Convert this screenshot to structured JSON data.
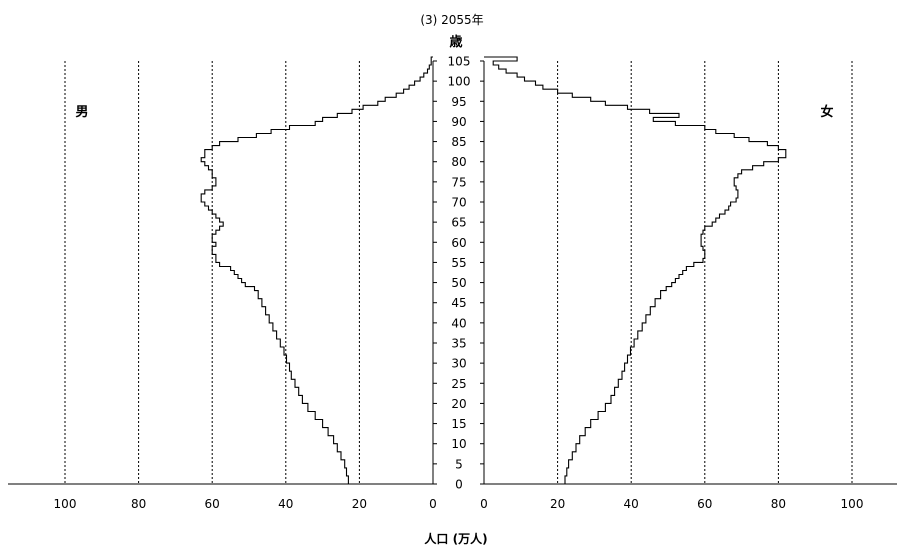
{
  "chart_data": {
    "type": "population_pyramid",
    "title": "(3) 2055年",
    "y_unit_label": "歳",
    "xlabel": "人口 (万人)",
    "left_label": "男",
    "right_label": "女",
    "xticks": [
      100,
      80,
      60,
      40,
      20,
      0
    ],
    "xticks_right": [
      0,
      20,
      40,
      60,
      80,
      100
    ],
    "yticks": [
      105,
      100,
      95,
      90,
      85,
      80,
      75,
      70,
      65,
      60,
      55,
      50,
      45,
      40,
      35,
      30,
      25,
      20,
      15,
      10,
      5,
      0
    ],
    "xlim": [
      0,
      110
    ],
    "ylim": [
      0,
      105
    ],
    "grid": "vertical dashed",
    "series": [
      {
        "name": "男",
        "ages": [
          0,
          2,
          4,
          6,
          8,
          10,
          12,
          14,
          16,
          18,
          20,
          22,
          24,
          26,
          28,
          30,
          32,
          34,
          36,
          38,
          40,
          42,
          44,
          46,
          48,
          49,
          50,
          51,
          52,
          53,
          54,
          55,
          56,
          57,
          58,
          59,
          60,
          61,
          62,
          63,
          64,
          65,
          66,
          67,
          68,
          69,
          70,
          71,
          72,
          73,
          74,
          75,
          76,
          77,
          78,
          79,
          80,
          81,
          82,
          83,
          84,
          85,
          86,
          87,
          88,
          89,
          90,
          91,
          92,
          93,
          94,
          95,
          96,
          97,
          98,
          99,
          100,
          101,
          102,
          103,
          104,
          105
        ],
        "values": [
          23,
          23.5,
          24,
          25,
          26,
          27,
          28.5,
          30,
          32,
          34,
          35.5,
          36.5,
          37.5,
          38.5,
          39,
          39.8,
          40.5,
          41.5,
          42.5,
          43.5,
          44.5,
          45.5,
          46.5,
          47.5,
          48.5,
          51,
          52,
          53,
          54,
          55,
          58,
          59,
          59,
          60,
          60,
          59,
          60,
          60,
          59,
          58,
          57,
          58,
          59,
          60,
          61,
          62,
          63,
          63,
          62,
          60,
          59,
          59,
          60,
          60,
          61,
          62,
          63,
          62,
          62,
          60,
          58,
          53,
          48,
          44,
          39,
          32,
          30,
          26,
          22,
          19,
          15,
          13,
          10,
          8,
          6.5,
          5,
          3.5,
          2.5,
          1.5,
          1,
          0.5,
          0.5
        ]
      },
      {
        "name": "女",
        "ages": [
          0,
          2,
          4,
          6,
          8,
          10,
          12,
          14,
          16,
          18,
          20,
          22,
          24,
          26,
          28,
          30,
          32,
          34,
          36,
          38,
          40,
          42,
          44,
          46,
          48,
          49,
          50,
          51,
          52,
          53,
          54,
          55,
          56,
          57,
          58,
          59,
          60,
          61,
          62,
          63,
          64,
          65,
          66,
          67,
          68,
          69,
          70,
          71,
          72,
          73,
          74,
          75,
          76,
          77,
          78,
          79,
          80,
          81,
          82,
          83,
          84,
          85,
          86,
          87,
          88,
          89,
          90,
          91,
          92,
          93,
          94,
          95,
          96,
          97,
          98,
          99,
          100,
          101,
          102,
          103,
          104,
          105
        ],
        "values": [
          22,
          22.5,
          23,
          24,
          25,
          26,
          27.5,
          29,
          31,
          33,
          34.5,
          35.5,
          36.5,
          37.5,
          38.2,
          39,
          39.8,
          40.8,
          41.8,
          43,
          44,
          45.2,
          46.5,
          48,
          49.5,
          51,
          52,
          53,
          54,
          55,
          57,
          59.5,
          60,
          60,
          59.5,
          59,
          59,
          59,
          59.5,
          60,
          62,
          63,
          64,
          65.5,
          66.5,
          67,
          68.5,
          69,
          69,
          68.5,
          68,
          68,
          69,
          70,
          73,
          76,
          80,
          82,
          82,
          80,
          77,
          72,
          68,
          63,
          60,
          52,
          46,
          53,
          45,
          39,
          33,
          29,
          24,
          20,
          16,
          14,
          11,
          9,
          6,
          4,
          2.5,
          9
        ]
      }
    ]
  }
}
